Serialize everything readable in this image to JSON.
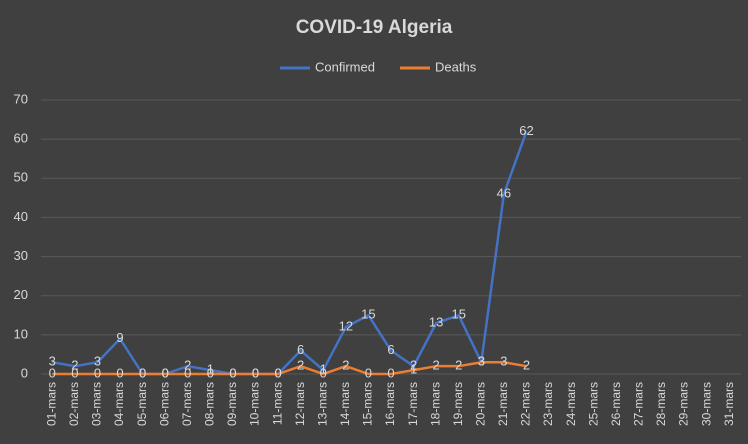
{
  "chart_data": {
    "type": "line",
    "title": "COVID-19 Algeria",
    "categories": [
      "01-mars",
      "02-mars",
      "03-mars",
      "04-mars",
      "05-mars",
      "06-mars",
      "07-mars",
      "08-mars",
      "09-mars",
      "10-mars",
      "11-mars",
      "12-mars",
      "13-mars",
      "14-mars",
      "15-mars",
      "16-mars",
      "17-mars",
      "18-mars",
      "19-mars",
      "20-mars",
      "21-mars",
      "22-mars",
      "23-mars",
      "24-mars",
      "25-mars",
      "26-mars",
      "27-mars",
      "28-mars",
      "29-mars",
      "30-mars",
      "31-mars"
    ],
    "series": [
      {
        "name": "Confirmed",
        "color": "#4472c4",
        "values": [
          3,
          2,
          3,
          9,
          0,
          0,
          2,
          1,
          0,
          0,
          0,
          6,
          1,
          12,
          15,
          6,
          2,
          13,
          15,
          3,
          46,
          62,
          null,
          null,
          null,
          null,
          null,
          null,
          null,
          null,
          null
        ]
      },
      {
        "name": "Deaths",
        "color": "#ed7d31",
        "values": [
          0,
          0,
          0,
          0,
          0,
          0,
          0,
          0,
          0,
          0,
          0,
          2,
          0,
          2,
          0,
          0,
          1,
          2,
          2,
          3,
          3,
          2,
          null,
          null,
          null,
          null,
          null,
          null,
          null,
          null,
          null
        ]
      }
    ],
    "ylim": [
      0,
      70
    ],
    "yticks": [
      0,
      10,
      20,
      30,
      40,
      50,
      60,
      70
    ],
    "grid": true,
    "legend": "top"
  }
}
